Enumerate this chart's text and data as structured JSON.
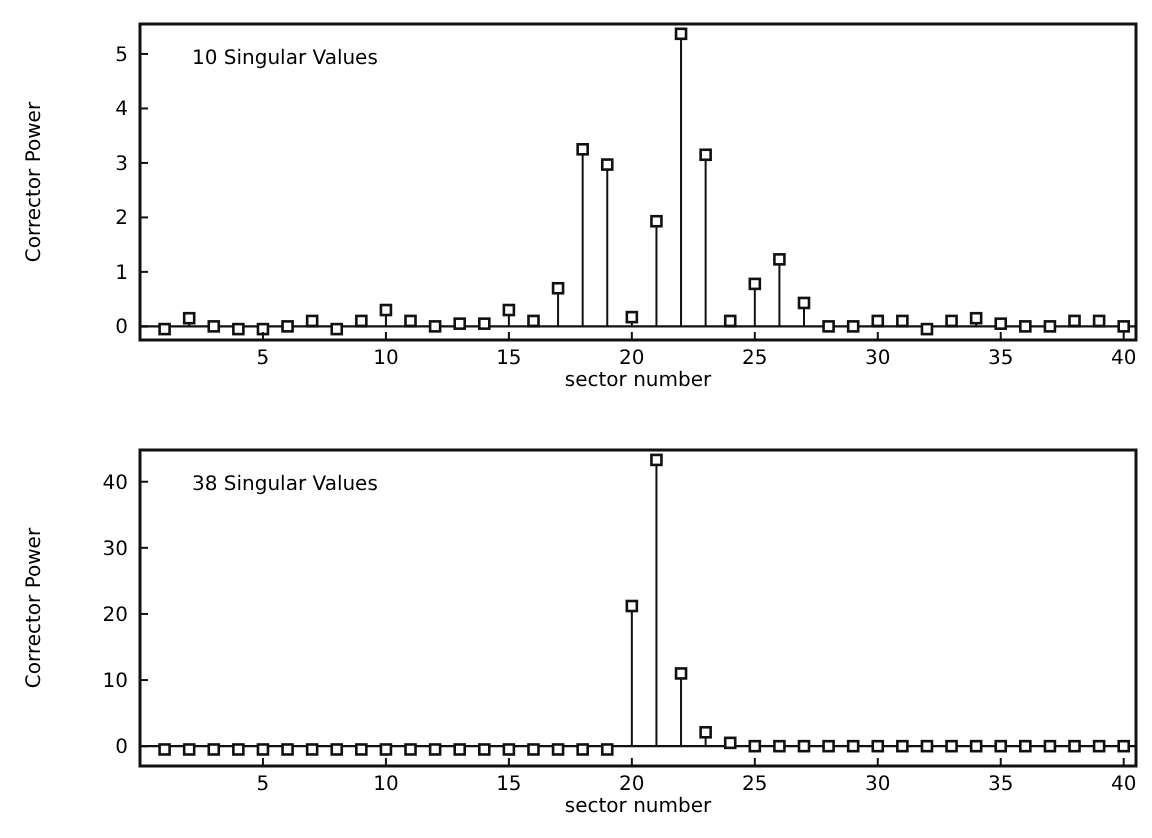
{
  "chart_data": [
    {
      "type": "lollipop",
      "title": "10 Singular Values",
      "xlabel": "sector number",
      "ylabel": "Corrector Power",
      "marker": "square",
      "color": "#111111",
      "x": [
        1,
        2,
        3,
        4,
        5,
        6,
        7,
        8,
        9,
        10,
        11,
        12,
        13,
        14,
        15,
        16,
        17,
        18,
        19,
        20,
        21,
        22,
        23,
        24,
        25,
        26,
        27,
        28,
        29,
        30,
        31,
        32,
        33,
        34,
        35,
        36,
        37,
        38,
        39,
        40
      ],
      "values": [
        -0.05,
        0.15,
        0,
        -0.05,
        -0.05,
        0,
        0.1,
        -0.05,
        0.1,
        0.3,
        0.1,
        0,
        0.05,
        0.05,
        0.3,
        0.1,
        0.7,
        3.25,
        2.97,
        0.17,
        1.93,
        5.37,
        3.15,
        0.1,
        0.78,
        1.23,
        0.43,
        0,
        0,
        0.1,
        0.1,
        -0.05,
        0.1,
        0.15,
        0.05,
        0,
        0,
        0.1,
        0.1,
        0
      ],
      "xlim": [
        0,
        40.5
      ],
      "xticks": [
        5,
        10,
        15,
        20,
        25,
        30,
        35,
        40
      ],
      "ylim": [
        -0.25,
        5.55
      ],
      "yticks": [
        0,
        1,
        2,
        3,
        4,
        5
      ]
    },
    {
      "type": "lollipop",
      "title": "38 Singular Values",
      "xlabel": "sector number",
      "ylabel": "Corrector Power",
      "marker": "square",
      "color": "#111111",
      "x": [
        1,
        2,
        3,
        4,
        5,
        6,
        7,
        8,
        9,
        10,
        11,
        12,
        13,
        14,
        15,
        16,
        17,
        18,
        19,
        20,
        21,
        22,
        23,
        24,
        25,
        26,
        27,
        28,
        29,
        30,
        31,
        32,
        33,
        34,
        35,
        36,
        37,
        38,
        39,
        40
      ],
      "values": [
        -0.5,
        -0.5,
        -0.5,
        -0.5,
        -0.5,
        -0.5,
        -0.5,
        -0.5,
        -0.5,
        -0.5,
        -0.5,
        -0.5,
        -0.5,
        -0.5,
        -0.5,
        -0.5,
        -0.5,
        -0.5,
        -0.5,
        21.2,
        43.3,
        11,
        2.1,
        0.5,
        0,
        0,
        0,
        0,
        0,
        0,
        0,
        0,
        0,
        0,
        0,
        0,
        0,
        0,
        0,
        0
      ],
      "xlim": [
        0,
        40.5
      ],
      "xticks": [
        5,
        10,
        15,
        20,
        25,
        30,
        35,
        40
      ],
      "ylim": [
        -3,
        44.8
      ],
      "yticks": [
        0,
        10,
        20,
        30,
        40
      ]
    }
  ]
}
